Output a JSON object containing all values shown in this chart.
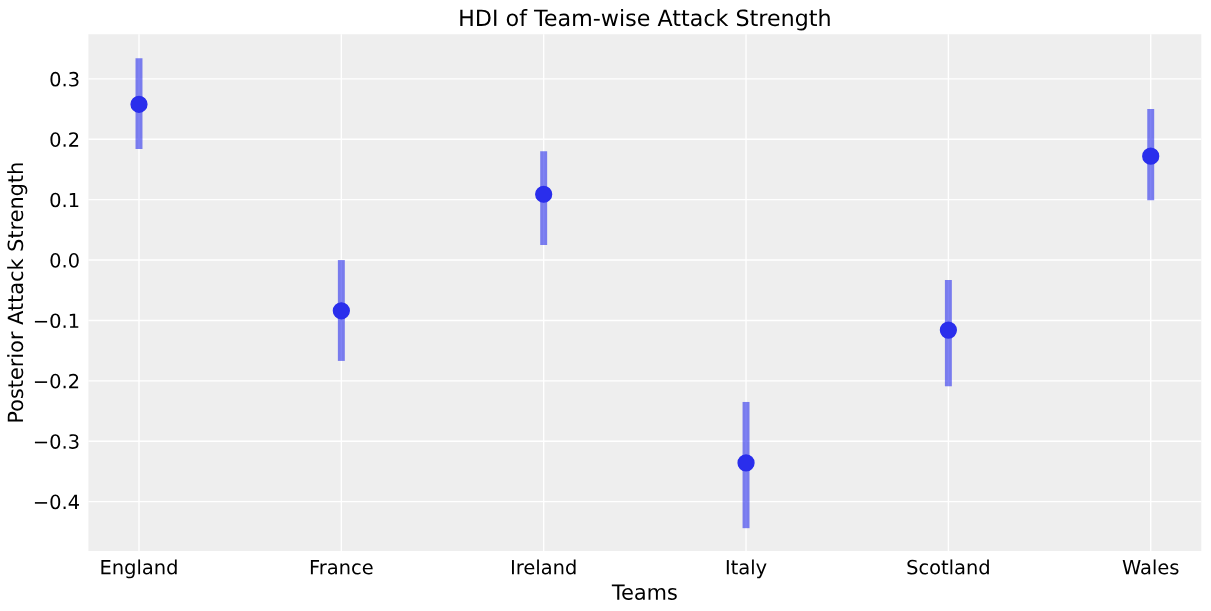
{
  "chart_data": {
    "type": "scatter",
    "title": "HDI of Team-wise Attack Strength",
    "xlabel": "Teams",
    "ylabel": "Posterior Attack Strength",
    "categories": [
      "England",
      "France",
      "Ireland",
      "Italy",
      "Scotland",
      "Wales"
    ],
    "series": [
      {
        "color": "#2a2eec",
        "values": [
          0.258,
          -0.084,
          0.109,
          -0.336,
          -0.116,
          0.172
        ],
        "errors": [
          [
            0.184,
            0.334
          ],
          [
            -0.167,
            0.0
          ],
          [
            0.025,
            0.18
          ],
          [
            -0.444,
            -0.235
          ],
          [
            -0.209,
            -0.033
          ],
          [
            0.099,
            0.25
          ]
        ]
      }
    ],
    "ylim": [
      -0.482,
      0.374
    ],
    "yticks": [
      {
        "value": -0.4,
        "label": "−0.4"
      },
      {
        "value": -0.3,
        "label": "−0.3"
      },
      {
        "value": -0.2,
        "label": "−0.2"
      },
      {
        "value": -0.1,
        "label": "−0.1"
      },
      {
        "value": 0.0,
        "label": "0.0"
      },
      {
        "value": 0.1,
        "label": "0.1"
      },
      {
        "value": 0.2,
        "label": "0.2"
      },
      {
        "value": 0.3,
        "label": "0.3"
      }
    ],
    "grid": true,
    "marker": "circle"
  }
}
